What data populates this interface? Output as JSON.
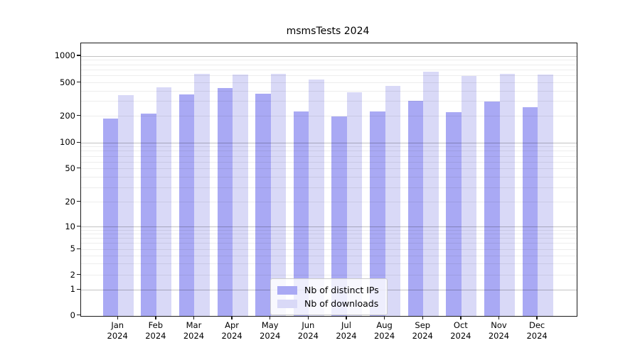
{
  "title": "msmsTests 2024",
  "colors": {
    "distinct_ips": "#a9a9f4",
    "downloads": "#d9d9f7",
    "axis": "#1a1a1a",
    "grid_major": "rgba(0,0,0,0.24)",
    "grid_minor": "rgba(0,0,0,0.07)",
    "legend_border": "#cccccc",
    "background": "#ffffff"
  },
  "chart_data": {
    "type": "bar",
    "title": "msmsTests 2024",
    "categories": [
      "Jan 2024",
      "Feb 2024",
      "Mar 2024",
      "Apr 2024",
      "May 2024",
      "Jun 2024",
      "Jul 2024",
      "Aug 2024",
      "Sep 2024",
      "Oct 2024",
      "Nov 2024",
      "Dec 2024"
    ],
    "series": [
      {
        "name": "Nb of distinct IPs",
        "color_key": "distinct_ips",
        "values": [
          190,
          215,
          365,
          435,
          370,
          228,
          198,
          228,
          305,
          222,
          298,
          256
        ]
      },
      {
        "name": "Nb of downloads",
        "color_key": "downloads",
        "values": [
          358,
          440,
          630,
          620,
          625,
          540,
          388,
          455,
          670,
          595,
          630,
          620
        ]
      }
    ],
    "xlabel": "",
    "ylabel": "",
    "y_axis": {
      "scale": "symlog",
      "tick_values": [
        1000,
        500,
        200,
        100,
        50,
        20,
        10,
        5,
        2,
        1,
        0
      ],
      "tick_labels": [
        "1000",
        "500",
        "200",
        "100",
        "50",
        "20",
        "10",
        "5",
        "2",
        "1",
        "0"
      ],
      "ylim": [
        0,
        1400
      ]
    },
    "grid": true,
    "legend": {
      "position": "lower center",
      "entries": [
        "Nb of distinct IPs",
        "Nb of downloads"
      ]
    }
  }
}
